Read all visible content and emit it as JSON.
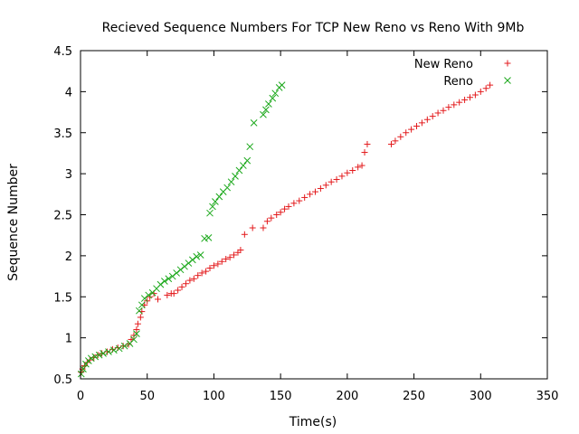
{
  "chart_data": {
    "type": "scatter",
    "title": "Recieved Sequence Numbers For TCP New Reno vs Reno With 9Mb",
    "xlabel": "Time(s)",
    "ylabel": "Sequence Number",
    "xlim": [
      0,
      350
    ],
    "ylim": [
      0.5,
      4.5
    ],
    "xticks": [
      0,
      50,
      100,
      150,
      200,
      250,
      300,
      350
    ],
    "yticks": [
      0.5,
      1,
      1.5,
      2,
      2.5,
      3,
      3.5,
      4,
      4.5
    ],
    "xtick_labels": [
      "0",
      "50",
      "100",
      "150",
      "200",
      "250",
      "300",
      "350"
    ],
    "ytick_labels": [
      "0.5",
      "1",
      "1.5",
      "2",
      "2.5",
      "3",
      "3.5",
      "4",
      "4.5"
    ],
    "grid": false,
    "legend_position": "top-right",
    "series": [
      {
        "name": "New Reno",
        "marker": "+",
        "color": "#e31a1c",
        "points": [
          [
            0.5,
            0.58
          ],
          [
            1.5,
            0.62
          ],
          [
            3,
            0.66
          ],
          [
            5,
            0.7
          ],
          [
            7,
            0.73
          ],
          [
            10,
            0.76
          ],
          [
            13,
            0.79
          ],
          [
            16,
            0.81
          ],
          [
            20,
            0.83
          ],
          [
            24,
            0.86
          ],
          [
            28,
            0.88
          ],
          [
            32,
            0.9
          ],
          [
            36,
            0.92
          ],
          [
            38,
            0.98
          ],
          [
            40,
            1.03
          ],
          [
            42,
            1.1
          ],
          [
            43,
            1.17
          ],
          [
            45,
            1.25
          ],
          [
            46,
            1.32
          ],
          [
            48,
            1.4
          ],
          [
            50,
            1.45
          ],
          [
            52,
            1.5
          ],
          [
            55,
            1.54
          ],
          [
            58,
            1.47
          ],
          [
            65,
            1.52
          ],
          [
            68,
            1.54
          ],
          [
            70,
            1.54
          ],
          [
            73,
            1.58
          ],
          [
            76,
            1.62
          ],
          [
            79,
            1.66
          ],
          [
            82,
            1.7
          ],
          [
            85,
            1.72
          ],
          [
            88,
            1.76
          ],
          [
            91,
            1.79
          ],
          [
            94,
            1.81
          ],
          [
            97,
            1.85
          ],
          [
            100,
            1.88
          ],
          [
            103,
            1.9
          ],
          [
            106,
            1.93
          ],
          [
            109,
            1.96
          ],
          [
            112,
            1.98
          ],
          [
            115,
            2.01
          ],
          [
            118,
            2.04
          ],
          [
            120,
            2.07
          ],
          [
            123,
            2.26
          ],
          [
            129,
            2.34
          ],
          [
            137,
            2.34
          ],
          [
            140,
            2.42
          ],
          [
            143,
            2.46
          ],
          [
            147,
            2.5
          ],
          [
            150,
            2.53
          ],
          [
            153,
            2.57
          ],
          [
            156,
            2.6
          ],
          [
            160,
            2.64
          ],
          [
            164,
            2.67
          ],
          [
            168,
            2.71
          ],
          [
            172,
            2.75
          ],
          [
            176,
            2.78
          ],
          [
            180,
            2.82
          ],
          [
            184,
            2.86
          ],
          [
            188,
            2.9
          ],
          [
            192,
            2.93
          ],
          [
            196,
            2.97
          ],
          [
            200,
            3.01
          ],
          [
            204,
            3.04
          ],
          [
            208,
            3.08
          ],
          [
            211,
            3.1
          ],
          [
            213,
            3.26
          ],
          [
            215,
            3.36
          ],
          [
            233,
            3.36
          ],
          [
            236,
            3.4
          ],
          [
            240,
            3.45
          ],
          [
            244,
            3.5
          ],
          [
            248,
            3.54
          ],
          [
            252,
            3.58
          ],
          [
            256,
            3.62
          ],
          [
            260,
            3.66
          ],
          [
            264,
            3.7
          ],
          [
            268,
            3.74
          ],
          [
            272,
            3.77
          ],
          [
            276,
            3.81
          ],
          [
            280,
            3.84
          ],
          [
            284,
            3.87
          ],
          [
            288,
            3.9
          ],
          [
            292,
            3.93
          ],
          [
            296,
            3.96
          ],
          [
            300,
            4.0
          ],
          [
            304,
            4.04
          ],
          [
            307,
            4.08
          ]
        ]
      },
      {
        "name": "Reno",
        "marker": "x",
        "color": "#1ba81b",
        "points": [
          [
            0.5,
            0.56
          ],
          [
            2,
            0.62
          ],
          [
            4,
            0.68
          ],
          [
            6,
            0.72
          ],
          [
            8,
            0.75
          ],
          [
            11,
            0.77
          ],
          [
            14,
            0.79
          ],
          [
            17,
            0.81
          ],
          [
            21,
            0.83
          ],
          [
            25,
            0.85
          ],
          [
            29,
            0.87
          ],
          [
            33,
            0.9
          ],
          [
            37,
            0.93
          ],
          [
            40,
            0.98
          ],
          [
            42,
            1.05
          ],
          [
            44,
            1.33
          ],
          [
            46,
            1.4
          ],
          [
            48,
            1.48
          ],
          [
            51,
            1.52
          ],
          [
            54,
            1.55
          ],
          [
            57,
            1.6
          ],
          [
            60,
            1.65
          ],
          [
            63,
            1.69
          ],
          [
            66,
            1.72
          ],
          [
            69,
            1.75
          ],
          [
            72,
            1.79
          ],
          [
            75,
            1.83
          ],
          [
            78,
            1.87
          ],
          [
            81,
            1.91
          ],
          [
            84,
            1.95
          ],
          [
            87,
            1.99
          ],
          [
            90,
            2.01
          ],
          [
            93,
            2.21
          ],
          [
            96,
            2.22
          ],
          [
            97,
            2.52
          ],
          [
            99,
            2.6
          ],
          [
            101,
            2.66
          ],
          [
            104,
            2.72
          ],
          [
            107,
            2.78
          ],
          [
            110,
            2.83
          ],
          [
            113,
            2.9
          ],
          [
            116,
            2.97
          ],
          [
            119,
            3.04
          ],
          [
            122,
            3.1
          ],
          [
            125,
            3.16
          ],
          [
            127,
            3.33
          ],
          [
            130,
            3.62
          ],
          [
            137,
            3.72
          ],
          [
            139,
            3.78
          ],
          [
            141,
            3.85
          ],
          [
            144,
            3.92
          ],
          [
            146,
            3.98
          ],
          [
            149,
            4.05
          ],
          [
            151,
            4.08
          ]
        ]
      }
    ]
  }
}
